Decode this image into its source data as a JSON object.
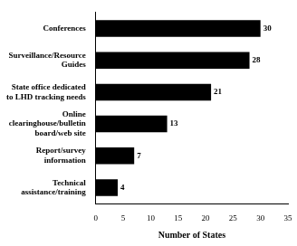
{
  "chart_data": {
    "type": "bar",
    "orientation": "horizontal",
    "categories": [
      "Conferences",
      "Surveillance/Resource Guides",
      "State office dedicated to LHD tracking needs",
      "Online clearinghouse/bulletin board/web site",
      "Report/survey information",
      "Technical assistance/training"
    ],
    "values": [
      30,
      28,
      21,
      13,
      7,
      4
    ],
    "color": "#000000",
    "x_label": "Number of States",
    "xlim": [
      0,
      35
    ],
    "xticks": [
      0,
      5,
      10,
      15,
      20,
      25,
      30,
      35
    ],
    "grid": false,
    "data_labels": true
  }
}
